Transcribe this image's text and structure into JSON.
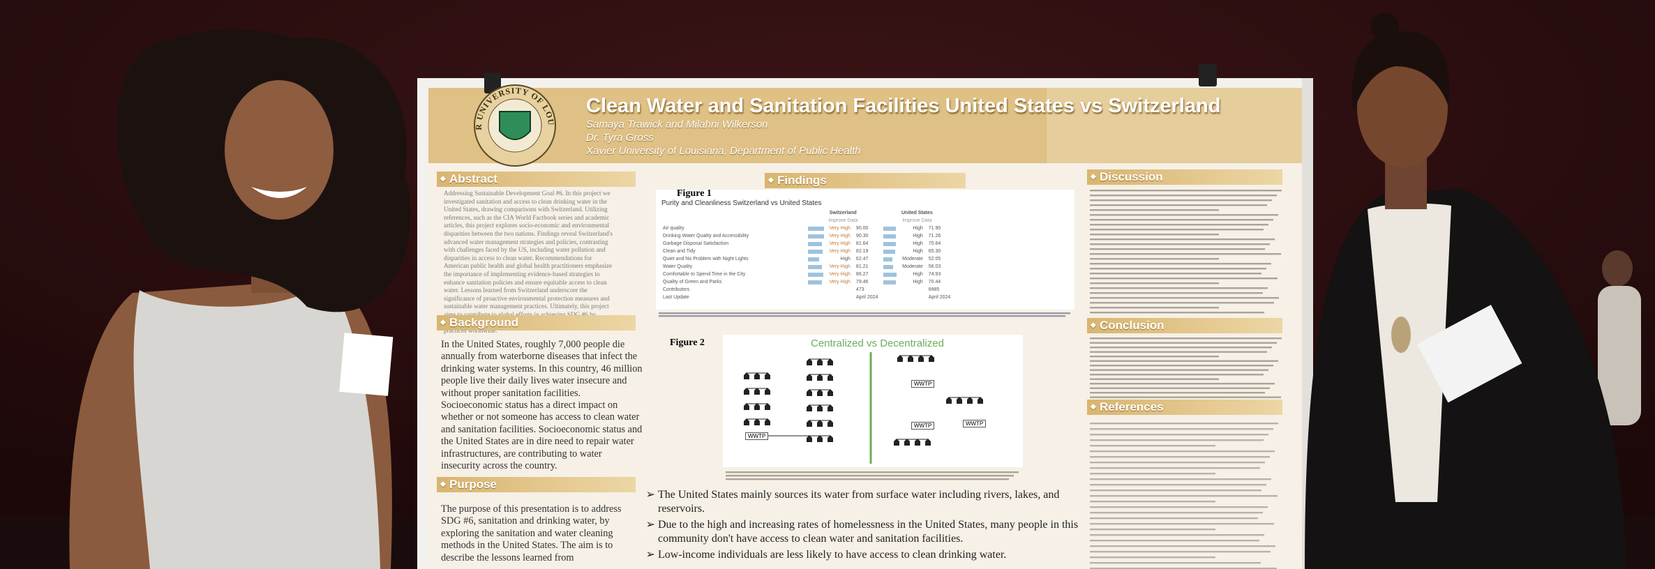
{
  "poster": {
    "logo_text": "XAVIER UNIVERSITY OF LOUISIANA",
    "title": "Clean Water and Sanitation Facilities United States vs Switzerland",
    "authors": "Samaya Trawick  and Milahni Wilkerson",
    "advisor": "Dr. Tyra Gross",
    "affiliation": "Xavier University of Louisiana, Department of Public Health",
    "abstract": {
      "heading": "Abstract",
      "text": "Addressing Sustainable Development Goal #6. In this project we investigated sanitation and access to clean drinking water in the United States, drawing comparisons with Switzerland. Utilizing references, such as the CIA World Factbook series and academic articles, this project explores socio-economic and environmental disparities between the two nations. Findings reveal Switzerland's advanced water management strategies and policies, contrasting with challenges faced by the US, including water pollution and disparities in access to clean water. Recommendations for American public health and global health practitioners emphasize the importance of implementing evidence-based strategies to enhance sanitation policies and ensure equitable access to clean water. Lessons learned from Switzerland underscore the significance of proactive environmental protection measures and sustainable water management practices. Ultimately, this project aims to contribute to global efforts in achieving SDG #6 by informing policy development and promoting efficient sanitation practices worldwide."
    },
    "background": {
      "heading": "Background",
      "text": "In the United States, roughly 7,000 people die annually from waterborne diseases that infect the drinking water systems. In this country, 46 million people live their daily lives water insecure and without proper sanitation facilities. Socioeconomic status has a direct impact on whether or not someone has access to clean water and sanitation facilities. Socioeconomic status and the United States are in dire need to repair water infrastructures, are contributing to water insecurity across the country."
    },
    "purpose": {
      "heading": "Purpose",
      "text": "The purpose of this presentation is to address SDG #6, sanitation and drinking water, by exploring the sanitation and water cleaning methods in the United States. The aim is to describe the lessons learned from"
    },
    "findings": {
      "heading": "Findings",
      "figure1": {
        "label": "Figure 1",
        "caption": "Purity and Cleanliness Switzerland vs United States",
        "columns": [
          "Switzerland",
          "United States"
        ],
        "subheads": [
          "Improve Data",
          "Improve Data"
        ],
        "rows": [
          [
            "Air quality",
            "Very High",
            "90.00",
            "High",
            "71.90"
          ],
          [
            "Drinking Water Quality and Accessibility",
            "Very High",
            "90.30",
            "High",
            "71.26"
          ],
          [
            "Garbage Disposal Satisfaction",
            "Very High",
            "81.64",
            "High",
            "70.64"
          ],
          [
            "Clean and Tidy",
            "Very High",
            "82.19",
            "High",
            "65.30"
          ],
          [
            "Quiet and No Problem with Night Lights",
            "High",
            "62.47",
            "Moderate",
            "52.05"
          ],
          [
            "Water Quality",
            "Very High",
            "81.21",
            "Moderate",
            "56.03"
          ],
          [
            "Comfortable to Spend Time in the City",
            "Very High",
            "86.27",
            "High",
            "74.93"
          ],
          [
            "Quality of Green and Parks",
            "Very High",
            "79.46",
            "High",
            "70.44"
          ]
        ],
        "footer_rows": [
          [
            "Contributors",
            "473",
            "8985"
          ],
          [
            "Last Update",
            "April 2024",
            "April 2024"
          ]
        ]
      },
      "figure2": {
        "label": "Figure 2",
        "chart_title": "Centralized vs Decentralized",
        "labels": [
          "WWTP",
          "WWTP",
          "WWTP",
          "WWTP"
        ]
      },
      "bullets": [
        "The United States mainly sources its water from surface water including rivers, lakes, and reservoirs.",
        "Due to the high and increasing rates of homelessness in the United States, many people in this community don't have access to clean water and sanitation facilities.",
        "Low-income individuals are less likely to have access to clean drinking water."
      ]
    },
    "discussion": {
      "heading": "Discussion"
    },
    "conclusion": {
      "heading": "Conclusion"
    },
    "references": {
      "heading": "References"
    }
  }
}
